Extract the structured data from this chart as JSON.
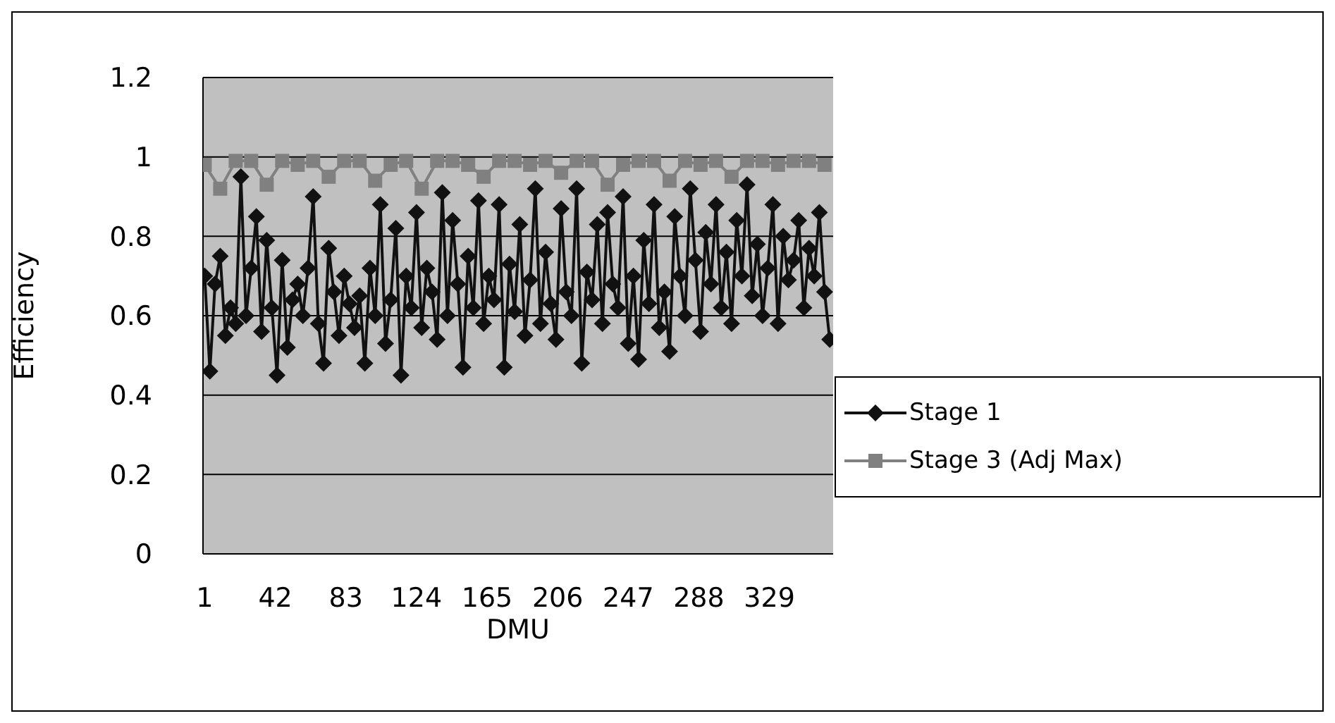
{
  "chart_data": {
    "type": "line",
    "xlabel": "DMU",
    "ylabel": "Efficiency",
    "xlim": [
      0,
      366
    ],
    "xticks": [
      1,
      42,
      83,
      124,
      165,
      206,
      247,
      288,
      329
    ],
    "ylim": [
      0,
      1.2
    ],
    "yticks": [
      0,
      0.2,
      0.4,
      0.6,
      0.8,
      1,
      1.2
    ],
    "grid": "y",
    "legend": "right",
    "series": [
      {
        "name": "Stage 1",
        "color": "#111111",
        "marker": "diamond",
        "x": [
          1,
          4,
          7,
          10,
          13,
          16,
          19,
          22,
          25,
          28,
          31,
          34,
          37,
          40,
          43,
          46,
          49,
          52,
          55,
          58,
          61,
          64,
          67,
          70,
          73,
          76,
          79,
          82,
          85,
          88,
          91,
          94,
          97,
          100,
          103,
          106,
          109,
          112,
          115,
          118,
          121,
          124,
          127,
          130,
          133,
          136,
          139,
          142,
          145,
          148,
          151,
          154,
          157,
          160,
          163,
          166,
          169,
          172,
          175,
          178,
          181,
          184,
          187,
          190,
          193,
          196,
          199,
          202,
          205,
          208,
          211,
          214,
          217,
          220,
          223,
          226,
          229,
          232,
          235,
          238,
          241,
          244,
          247,
          250,
          253,
          256,
          259,
          262,
          265,
          268,
          271,
          274,
          277,
          280,
          283,
          286,
          289,
          292,
          295,
          298,
          301,
          304,
          307,
          310,
          313,
          316,
          319,
          322,
          325,
          328,
          331,
          334,
          337,
          340,
          343,
          346,
          349,
          352,
          355,
          358,
          361,
          364
        ],
        "values": [
          0.7,
          0.46,
          0.68,
          0.75,
          0.55,
          0.62,
          0.58,
          0.95,
          0.6,
          0.72,
          0.85,
          0.56,
          0.79,
          0.62,
          0.45,
          0.74,
          0.52,
          0.64,
          0.68,
          0.6,
          0.72,
          0.9,
          0.58,
          0.48,
          0.77,
          0.66,
          0.55,
          0.7,
          0.63,
          0.57,
          0.65,
          0.48,
          0.72,
          0.6,
          0.88,
          0.53,
          0.64,
          0.82,
          0.45,
          0.7,
          0.62,
          0.86,
          0.57,
          0.72,
          0.66,
          0.54,
          0.91,
          0.6,
          0.84,
          0.68,
          0.47,
          0.75,
          0.62,
          0.89,
          0.58,
          0.7,
          0.64,
          0.88,
          0.47,
          0.73,
          0.61,
          0.83,
          0.55,
          0.69,
          0.92,
          0.58,
          0.76,
          0.63,
          0.54,
          0.87,
          0.66,
          0.6,
          0.92,
          0.48,
          0.71,
          0.64,
          0.83,
          0.58,
          0.86,
          0.68,
          0.62,
          0.9,
          0.53,
          0.7,
          0.49,
          0.79,
          0.63,
          0.88,
          0.57,
          0.66,
          0.51,
          0.85,
          0.7,
          0.6,
          0.92,
          0.74,
          0.56,
          0.81,
          0.68,
          0.88,
          0.62,
          0.76,
          0.58,
          0.84,
          0.7,
          0.93,
          0.65,
          0.78,
          0.6,
          0.72,
          0.88,
          0.58,
          0.8,
          0.69,
          0.74,
          0.84,
          0.62,
          0.77,
          0.7,
          0.86,
          0.66,
          0.54
        ]
      },
      {
        "name": "Stage 3 (Adj Max)",
        "color": "#808080",
        "marker": "square",
        "x": [
          1,
          10,
          19,
          28,
          37,
          46,
          55,
          64,
          73,
          82,
          91,
          100,
          109,
          118,
          127,
          136,
          145,
          154,
          163,
          172,
          181,
          190,
          199,
          208,
          217,
          226,
          235,
          244,
          253,
          262,
          271,
          280,
          289,
          298,
          307,
          316,
          325,
          334,
          343,
          352,
          361
        ],
        "values": [
          0.98,
          0.92,
          0.99,
          0.99,
          0.93,
          0.99,
          0.98,
          0.99,
          0.95,
          0.99,
          0.99,
          0.94,
          0.98,
          0.99,
          0.92,
          0.99,
          0.99,
          0.98,
          0.95,
          0.99,
          0.99,
          0.98,
          0.99,
          0.96,
          0.99,
          0.99,
          0.93,
          0.98,
          0.99,
          0.99,
          0.94,
          0.99,
          0.98,
          0.99,
          0.95,
          0.99,
          0.99,
          0.98,
          0.99,
          0.99,
          0.98
        ]
      }
    ]
  }
}
